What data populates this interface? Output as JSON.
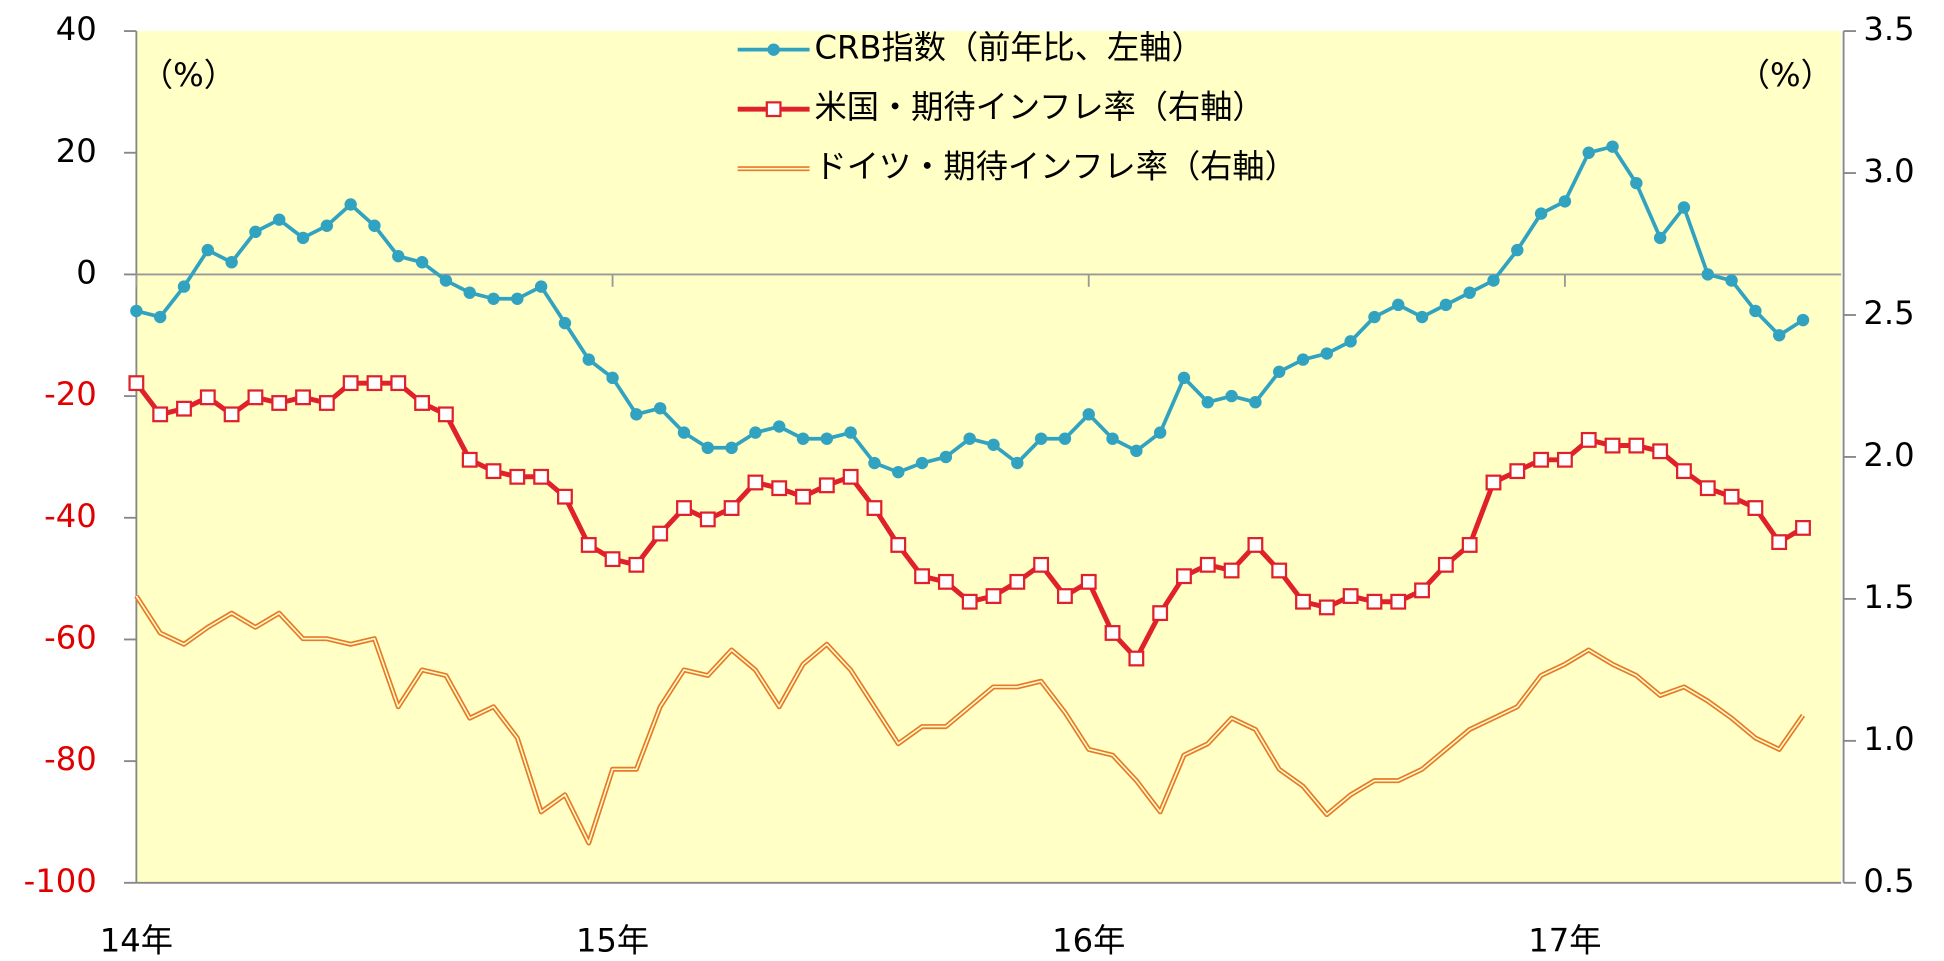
{
  "chart_data": {
    "type": "line",
    "annotations": [
      "（%）",
      "（%）"
    ],
    "x": [
      14.0,
      14.05,
      14.1,
      14.15,
      14.2,
      14.25,
      14.3,
      14.35,
      14.4,
      14.45,
      14.5,
      14.55,
      14.6,
      14.65,
      14.7,
      14.75,
      14.8,
      14.85,
      14.9,
      14.95,
      15.0,
      15.05,
      15.1,
      15.15,
      15.2,
      15.25,
      15.3,
      15.35,
      15.4,
      15.45,
      15.5,
      15.55,
      15.6,
      15.65,
      15.7,
      15.75,
      15.8,
      15.85,
      15.9,
      15.95,
      16.0,
      16.05,
      16.1,
      16.15,
      16.2,
      16.25,
      16.3,
      16.35,
      16.4,
      16.45,
      16.5,
      16.55,
      16.6,
      16.65,
      16.7,
      16.75,
      16.8,
      16.85,
      16.9,
      16.95,
      17.0,
      17.05,
      17.1,
      17.15,
      17.2,
      17.25,
      17.3,
      17.35,
      17.4,
      17.45,
      17.5
    ],
    "xlim": [
      14,
      17.58
    ],
    "xticks": [
      {
        "value": 14,
        "label": "14年"
      },
      {
        "value": 15,
        "label": "15年"
      },
      {
        "value": 16,
        "label": "16年"
      },
      {
        "value": 17,
        "label": "17年"
      }
    ],
    "ylim": [
      -100,
      40
    ],
    "yticks": [
      40,
      20,
      0,
      -20,
      -40,
      -60,
      -80,
      -100
    ],
    "negative_tick_color": "#e00000",
    "y2lim": [
      0.5,
      3.5
    ],
    "y2ticks": [
      3.5,
      {
        "value": 3.0,
        "label": "3.0"
      },
      2.5,
      {
        "value": 2.0,
        "label": "2.0"
      },
      1.5,
      {
        "value": 1.0,
        "label": "1.0"
      },
      0.5
    ],
    "series": [
      {
        "name": "CRB指数（前年比、左軸）",
        "color": "#31a3c0",
        "marker": "circle",
        "values": [
          -6,
          -7,
          -2,
          4,
          2,
          7,
          9,
          6,
          8,
          11.5,
          8,
          3,
          2,
          -1,
          -3,
          -4,
          -4,
          -2,
          -8,
          -14,
          -17,
          -23,
          -22,
          -26,
          -28.5,
          -28.5,
          -26,
          -25,
          -27,
          -27,
          -26,
          -31,
          -32.5,
          -31,
          -30,
          -27,
          -28,
          -31,
          -27,
          -27,
          -23,
          -27,
          -29,
          -26,
          -17,
          -21,
          -20,
          -21,
          -16,
          -14,
          -13,
          -11,
          -7,
          -5,
          -7,
          -5,
          -3,
          -1,
          4,
          10,
          12,
          20,
          21,
          15,
          6,
          11,
          0,
          -1,
          -6,
          -10,
          -7.5
        ]
      },
      {
        "name": "米国・期待インフレ率（右軸）",
        "color": "#e0202a",
        "marker": "square",
        "axis": "y2",
        "values": [
          2.26,
          2.15,
          2.17,
          2.21,
          2.15,
          2.21,
          2.19,
          2.21,
          2.19,
          2.26,
          2.26,
          2.26,
          2.19,
          2.15,
          1.99,
          1.95,
          1.93,
          1.93,
          1.86,
          1.69,
          1.64,
          1.62,
          1.73,
          1.82,
          1.78,
          1.82,
          1.91,
          1.89,
          1.86,
          1.9,
          1.93,
          1.82,
          1.69,
          1.58,
          1.56,
          1.49,
          1.51,
          1.56,
          1.62,
          1.51,
          1.56,
          1.38,
          1.29,
          1.45,
          1.58,
          1.62,
          1.6,
          1.69,
          1.6,
          1.49,
          1.47,
          1.51,
          1.49,
          1.49,
          1.53,
          1.62,
          1.69,
          1.91,
          1.95,
          1.99,
          1.99,
          2.06,
          2.04,
          2.04,
          2.02,
          1.95,
          1.89,
          1.86,
          1.82,
          1.7,
          1.75
        ]
      },
      {
        "name": "ドイツ・期待インフレ率（右軸）",
        "color": "#e8782a",
        "marker": "double",
        "axis": "y2",
        "values": [
          1.51,
          1.38,
          1.34,
          1.4,
          1.45,
          1.4,
          1.45,
          1.36,
          1.36,
          1.34,
          1.36,
          1.12,
          1.25,
          1.23,
          1.08,
          1.12,
          1.01,
          0.75,
          0.81,
          0.64,
          0.9,
          0.9,
          1.12,
          1.25,
          1.23,
          1.32,
          1.25,
          1.12,
          1.27,
          1.34,
          1.25,
          1.12,
          0.99,
          1.05,
          1.05,
          1.12,
          1.19,
          1.19,
          1.21,
          1.1,
          0.97,
          0.95,
          0.86,
          0.75,
          0.95,
          0.99,
          1.08,
          1.04,
          0.9,
          0.84,
          0.74,
          0.81,
          0.86,
          0.86,
          0.9,
          0.97,
          1.04,
          1.08,
          1.12,
          1.23,
          1.27,
          1.32,
          1.27,
          1.23,
          1.16,
          1.19,
          1.14,
          1.08,
          1.01,
          0.97,
          1.09
        ]
      }
    ]
  }
}
